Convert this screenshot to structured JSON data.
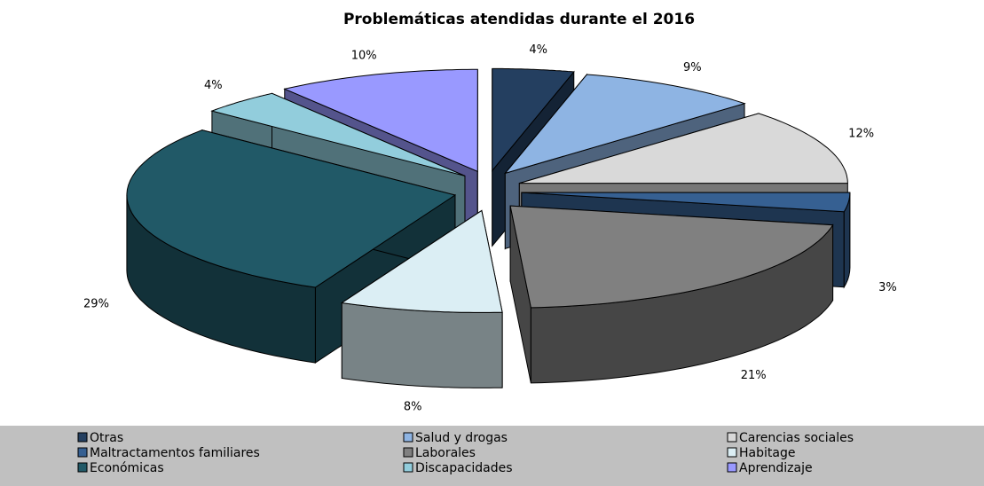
{
  "chart_data": {
    "type": "pie3d",
    "title": "Problemáticas atendidas durante el 2016",
    "categories": [
      "Otras",
      "Salud y drogas",
      "Carencias sociales",
      "Maltractamentos familiares",
      "Laborales",
      "Habitage",
      "Económicas",
      "Discapacidades",
      "Aprendizaje"
    ],
    "values": [
      4,
      9,
      12,
      3,
      21,
      8,
      29,
      4,
      10
    ],
    "value_labels": [
      "4%",
      "9%",
      "12%",
      "3%",
      "21%",
      "8%",
      "29%",
      "4%",
      "10%"
    ],
    "colors": [
      "#243f60",
      "#8eb4e3",
      "#d9d9d9",
      "#366092",
      "#808080",
      "#dbeef4",
      "#215967",
      "#92cddc",
      "#9999ff"
    ],
    "legend": "bottom"
  }
}
